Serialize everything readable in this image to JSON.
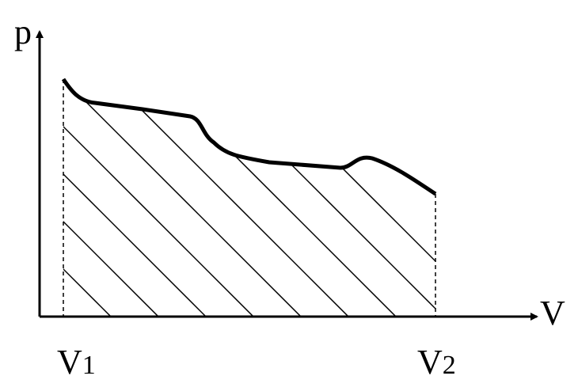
{
  "axes": {
    "y_label": "p",
    "x_label": "V"
  },
  "markers": [
    {
      "base": "V",
      "subscript": "1"
    },
    {
      "base": "V",
      "subscript": "2"
    }
  ]
}
